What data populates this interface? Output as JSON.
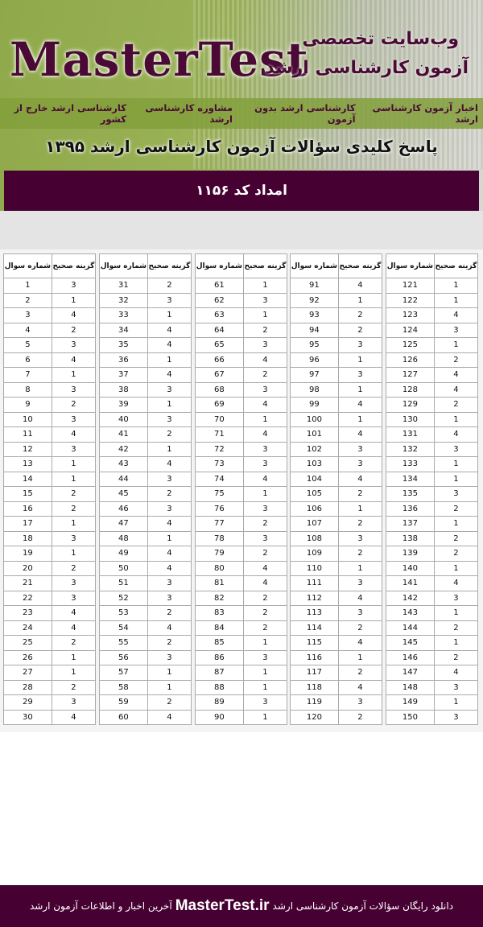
{
  "header": {
    "logo": "MasterTest",
    "tagline_line1": "وب‌سایت تخصصی",
    "tagline_line2": "آزمون کارشناسی ارشد",
    "nav": [
      "اخبار آزمون کارشناسی ارشد",
      "کارشناسی ارشد بدون آزمون",
      "مشاوره کارشناسی ارشد",
      "کارشناسی ارشد خارج از کشور"
    ],
    "subtitle": "پاسخ کلیدی سؤالات آزمون کارشناسی ارشد ۱۳۹۵",
    "code_label": "امداد کد ۱۱۵۶"
  },
  "table": {
    "col_question": "شماره سوال",
    "col_answer": "گزینه صحیح",
    "groups": [
      {
        "rows": [
          [
            1,
            3
          ],
          [
            2,
            1
          ],
          [
            3,
            4
          ],
          [
            4,
            2
          ],
          [
            5,
            3
          ],
          [
            6,
            4
          ],
          [
            7,
            1
          ],
          [
            8,
            3
          ],
          [
            9,
            2
          ],
          [
            10,
            3
          ],
          [
            11,
            4
          ],
          [
            12,
            3
          ],
          [
            13,
            1
          ],
          [
            14,
            1
          ],
          [
            15,
            2
          ],
          [
            16,
            2
          ],
          [
            17,
            1
          ],
          [
            18,
            3
          ],
          [
            19,
            1
          ],
          [
            20,
            2
          ],
          [
            21,
            3
          ],
          [
            22,
            3
          ],
          [
            23,
            4
          ],
          [
            24,
            4
          ],
          [
            25,
            2
          ],
          [
            26,
            1
          ],
          [
            27,
            1
          ],
          [
            28,
            2
          ],
          [
            29,
            3
          ],
          [
            30,
            4
          ]
        ]
      },
      {
        "rows": [
          [
            31,
            2
          ],
          [
            32,
            3
          ],
          [
            33,
            1
          ],
          [
            34,
            4
          ],
          [
            35,
            4
          ],
          [
            36,
            1
          ],
          [
            37,
            4
          ],
          [
            38,
            3
          ],
          [
            39,
            1
          ],
          [
            40,
            3
          ],
          [
            41,
            2
          ],
          [
            42,
            1
          ],
          [
            43,
            4
          ],
          [
            44,
            3
          ],
          [
            45,
            2
          ],
          [
            46,
            3
          ],
          [
            47,
            4
          ],
          [
            48,
            1
          ],
          [
            49,
            4
          ],
          [
            50,
            4
          ],
          [
            51,
            3
          ],
          [
            52,
            3
          ],
          [
            53,
            2
          ],
          [
            54,
            4
          ],
          [
            55,
            2
          ],
          [
            56,
            3
          ],
          [
            57,
            1
          ],
          [
            58,
            1
          ],
          [
            59,
            2
          ],
          [
            60,
            4
          ]
        ]
      },
      {
        "rows": [
          [
            61,
            1
          ],
          [
            62,
            3
          ],
          [
            63,
            1
          ],
          [
            64,
            2
          ],
          [
            65,
            3
          ],
          [
            66,
            4
          ],
          [
            67,
            2
          ],
          [
            68,
            3
          ],
          [
            69,
            4
          ],
          [
            70,
            1
          ],
          [
            71,
            4
          ],
          [
            72,
            3
          ],
          [
            73,
            3
          ],
          [
            74,
            4
          ],
          [
            75,
            1
          ],
          [
            76,
            3
          ],
          [
            77,
            2
          ],
          [
            78,
            3
          ],
          [
            79,
            2
          ],
          [
            80,
            4
          ],
          [
            81,
            4
          ],
          [
            82,
            2
          ],
          [
            83,
            2
          ],
          [
            84,
            2
          ],
          [
            85,
            1
          ],
          [
            86,
            3
          ],
          [
            87,
            1
          ],
          [
            88,
            1
          ],
          [
            89,
            3
          ],
          [
            90,
            1
          ]
        ]
      },
      {
        "rows": [
          [
            91,
            4
          ],
          [
            92,
            1
          ],
          [
            93,
            2
          ],
          [
            94,
            2
          ],
          [
            95,
            3
          ],
          [
            96,
            1
          ],
          [
            97,
            3
          ],
          [
            98,
            1
          ],
          [
            99,
            4
          ],
          [
            100,
            1
          ],
          [
            101,
            4
          ],
          [
            102,
            3
          ],
          [
            103,
            3
          ],
          [
            104,
            4
          ],
          [
            105,
            2
          ],
          [
            106,
            1
          ],
          [
            107,
            2
          ],
          [
            108,
            3
          ],
          [
            109,
            2
          ],
          [
            110,
            1
          ],
          [
            111,
            3
          ],
          [
            112,
            4
          ],
          [
            113,
            3
          ],
          [
            114,
            2
          ],
          [
            115,
            4
          ],
          [
            116,
            1
          ],
          [
            117,
            2
          ],
          [
            118,
            4
          ],
          [
            119,
            3
          ],
          [
            120,
            2
          ]
        ]
      },
      {
        "rows": [
          [
            121,
            1
          ],
          [
            122,
            1
          ],
          [
            123,
            4
          ],
          [
            124,
            3
          ],
          [
            125,
            1
          ],
          [
            126,
            2
          ],
          [
            127,
            4
          ],
          [
            128,
            4
          ],
          [
            129,
            2
          ],
          [
            130,
            1
          ],
          [
            131,
            4
          ],
          [
            132,
            3
          ],
          [
            133,
            1
          ],
          [
            134,
            1
          ],
          [
            135,
            3
          ],
          [
            136,
            2
          ],
          [
            137,
            1
          ],
          [
            138,
            2
          ],
          [
            139,
            2
          ],
          [
            140,
            1
          ],
          [
            141,
            4
          ],
          [
            142,
            3
          ],
          [
            143,
            1
          ],
          [
            144,
            2
          ],
          [
            145,
            1
          ],
          [
            146,
            2
          ],
          [
            147,
            4
          ],
          [
            148,
            3
          ],
          [
            149,
            1
          ],
          [
            150,
            3
          ]
        ]
      }
    ]
  },
  "footer": {
    "before": "دانلود رایگان سؤالات آزمون کارشناسی ارشد",
    "site": "MasterTest.ir",
    "after": "آخرین اخبار و اطلاعات آزمون ارشد"
  },
  "colors": {
    "maroon": "#470032",
    "green": "#9bb257"
  }
}
